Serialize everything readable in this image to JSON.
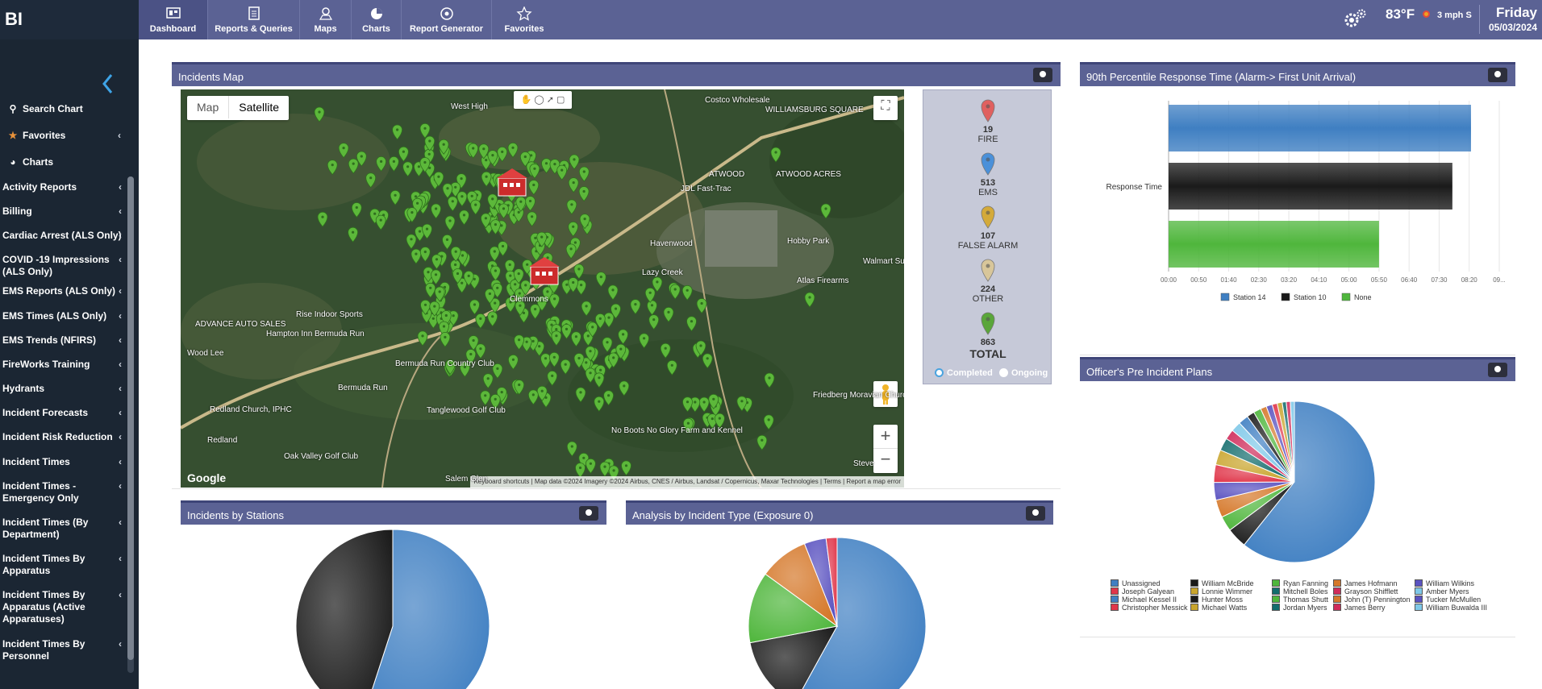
{
  "brand": "BI",
  "nav": [
    {
      "label": "Dashboard",
      "icon": "dashboard-icon"
    },
    {
      "label": "Reports & Queries",
      "icon": "reports-icon"
    },
    {
      "label": "Maps",
      "icon": "maps-icon"
    },
    {
      "label": "Charts",
      "icon": "charts-icon"
    },
    {
      "label": "Report Generator",
      "icon": "report-generator-icon"
    },
    {
      "label": "Favorites",
      "icon": "star-icon"
    }
  ],
  "weather": {
    "temp": "83°F",
    "wind": "3 mph S",
    "day": "Friday",
    "date": "05/03/2024"
  },
  "sidebar": {
    "top": [
      {
        "label": "Search Chart",
        "icon": "search-icon"
      },
      {
        "label": "Favorites",
        "icon": "star-icon"
      },
      {
        "label": "Charts",
        "icon": "pie-icon"
      }
    ],
    "items": [
      "Activity Reports",
      "Billing",
      "Cardiac Arrest (ALS Only)",
      "COVID -19 Impressions (ALS Only)",
      "EMS Reports (ALS Only)",
      "EMS Times (ALS Only)",
      "EMS Trends (NFIRS)",
      "FireWorks Training",
      "Hydrants",
      "Incident Forecasts",
      "Incident Risk Reduction",
      "Incident Times",
      "Incident Times - Emergency Only",
      "Incident Times (By Department)",
      "Incident Times By Apparatus",
      "Incident Times By Apparatus (Active Apparatuses)",
      "Incident Times By Personnel"
    ]
  },
  "panels": {
    "incidents_map": "Incidents Map",
    "response_time": "90th Percentile Response Time (Alarm-> First Unit Arrival)",
    "pre_incident": "Officer's Pre Incident Plans",
    "by_stations": "Incidents by Stations",
    "by_type": "Analysis by Incident Type (Exposure 0)"
  },
  "map": {
    "tab_map": "Map",
    "tab_satellite": "Satellite",
    "google": "Google",
    "footer": "Keyboard shortcuts  |  Map data ©2024 Imagery ©2024 Airbus, CNES / Airbus, Landsat / Copernicus, Maxar Technologies  |  Terms  |  Report a map error",
    "places": [
      "West High",
      "Costco Wholesale",
      "WILLIAMSBURG SQUARE",
      "ATWOOD",
      "ATWOOD ACRES",
      "JDL Fast-Trac",
      "Hobby Park",
      "Walmart Su",
      "Atlas Firearms",
      "ADVANCE AUTO SALES",
      "Rise Indoor Sports",
      "Hampton Inn Bermuda Run",
      "Wood Lee",
      "Bermuda Run Country Club",
      "Bermuda Run",
      "Friedberg Moravian Church",
      "Redland Church, IPHC",
      "Tanglewood Golf Club",
      "No Boots No Glory Farm and Kennel",
      "Redland",
      "Oak Valley Golf Club",
      "Salem Glen",
      "Steve",
      "Clemmons",
      "Havenwood",
      "Lazy Creek"
    ]
  },
  "map_legend": {
    "fire": {
      "count": "19",
      "label": "FIRE",
      "color": "#e0605f"
    },
    "ems": {
      "count": "513",
      "label": "EMS",
      "color": "#4a90d9"
    },
    "false_alarm": {
      "count": "107",
      "label": "FALSE ALARM",
      "color": "#d4aa3a"
    },
    "other": {
      "count": "224",
      "label": "OTHER",
      "color": "#d8c69a"
    },
    "total": {
      "count": "863",
      "label": "TOTAL",
      "color": "#5aa63a"
    },
    "completed": "Completed",
    "ongoing": "Ongoing"
  },
  "chart_data": [
    {
      "type": "bar",
      "orientation": "horizontal",
      "category_label": "Response Time",
      "series": [
        {
          "name": "Station 14",
          "value_seconds": 503,
          "color": "#3f7fc2"
        },
        {
          "name": "Station 10",
          "value_seconds": 472,
          "color": "#1a1a1a"
        },
        {
          "name": "None",
          "value_seconds": 350,
          "color": "#4fb63c"
        }
      ],
      "xticks": [
        "00:00",
        "00:50",
        "01:40",
        "02:30",
        "03:20",
        "04:10",
        "05:00",
        "05:50",
        "06:40",
        "07:30",
        "08:20",
        "09..."
      ],
      "xlim": [
        0,
        550
      ]
    },
    {
      "type": "pie",
      "legend": [
        {
          "name": "Unassigned",
          "value": 60,
          "color": "#3f7fc2"
        },
        {
          "name": "William McBride",
          "value": 4,
          "color": "#1a1a1a"
        },
        {
          "name": "Ryan Fanning",
          "value": 3,
          "color": "#4fb63c"
        },
        {
          "name": "James Hofmann",
          "value": 3.5,
          "color": "#d5782a"
        },
        {
          "name": "William Wilkins",
          "value": 3.5,
          "color": "#5a52c0"
        },
        {
          "name": "Joseph Galyean",
          "value": 3.5,
          "color": "#e0364a"
        },
        {
          "name": "Lonnie Wimmer",
          "value": 3,
          "color": "#c9a52d"
        },
        {
          "name": "Mitchell Boles",
          "value": 2.5,
          "color": "#136d6d"
        },
        {
          "name": "Grayson Shifflett",
          "value": 2,
          "color": "#cf2b5a"
        },
        {
          "name": "Amber Myers",
          "value": 2,
          "color": "#7fc8e8"
        },
        {
          "name": "Michael Kessel II",
          "value": 2,
          "color": "#3f7fc2"
        },
        {
          "name": "Hunter Moss",
          "value": 1.5,
          "color": "#1a1a1a"
        },
        {
          "name": "Thomas Shutt",
          "value": 1.5,
          "color": "#4fb63c"
        },
        {
          "name": "John (T) Pennington",
          "value": 1.2,
          "color": "#d5782a"
        },
        {
          "name": "Tucker McMullen",
          "value": 1.2,
          "color": "#5a52c0"
        },
        {
          "name": "Christopher Messick",
          "value": 1,
          "color": "#e0364a"
        },
        {
          "name": "Michael Watts",
          "value": 1,
          "color": "#c9a52d"
        },
        {
          "name": "Jordan Myers",
          "value": 0.8,
          "color": "#136d6d"
        },
        {
          "name": "James Berry",
          "value": 0.8,
          "color": "#cf2b5a"
        },
        {
          "name": "William Buwalda III",
          "value": 0.8,
          "color": "#7fc8e8"
        }
      ]
    },
    {
      "type": "pie",
      "slices": [
        {
          "value": 55,
          "color": "#3f7fc2"
        },
        {
          "value": 45,
          "color": "#1a1a1a"
        }
      ]
    },
    {
      "type": "pie",
      "slices": [
        {
          "value": 58,
          "color": "#3f7fc2"
        },
        {
          "value": 14,
          "color": "#1a1a1a"
        },
        {
          "value": 13,
          "color": "#4fb63c"
        },
        {
          "value": 9,
          "color": "#d5782a"
        },
        {
          "value": 4,
          "color": "#5a52c0"
        },
        {
          "value": 2,
          "color": "#e0364a"
        }
      ]
    }
  ]
}
